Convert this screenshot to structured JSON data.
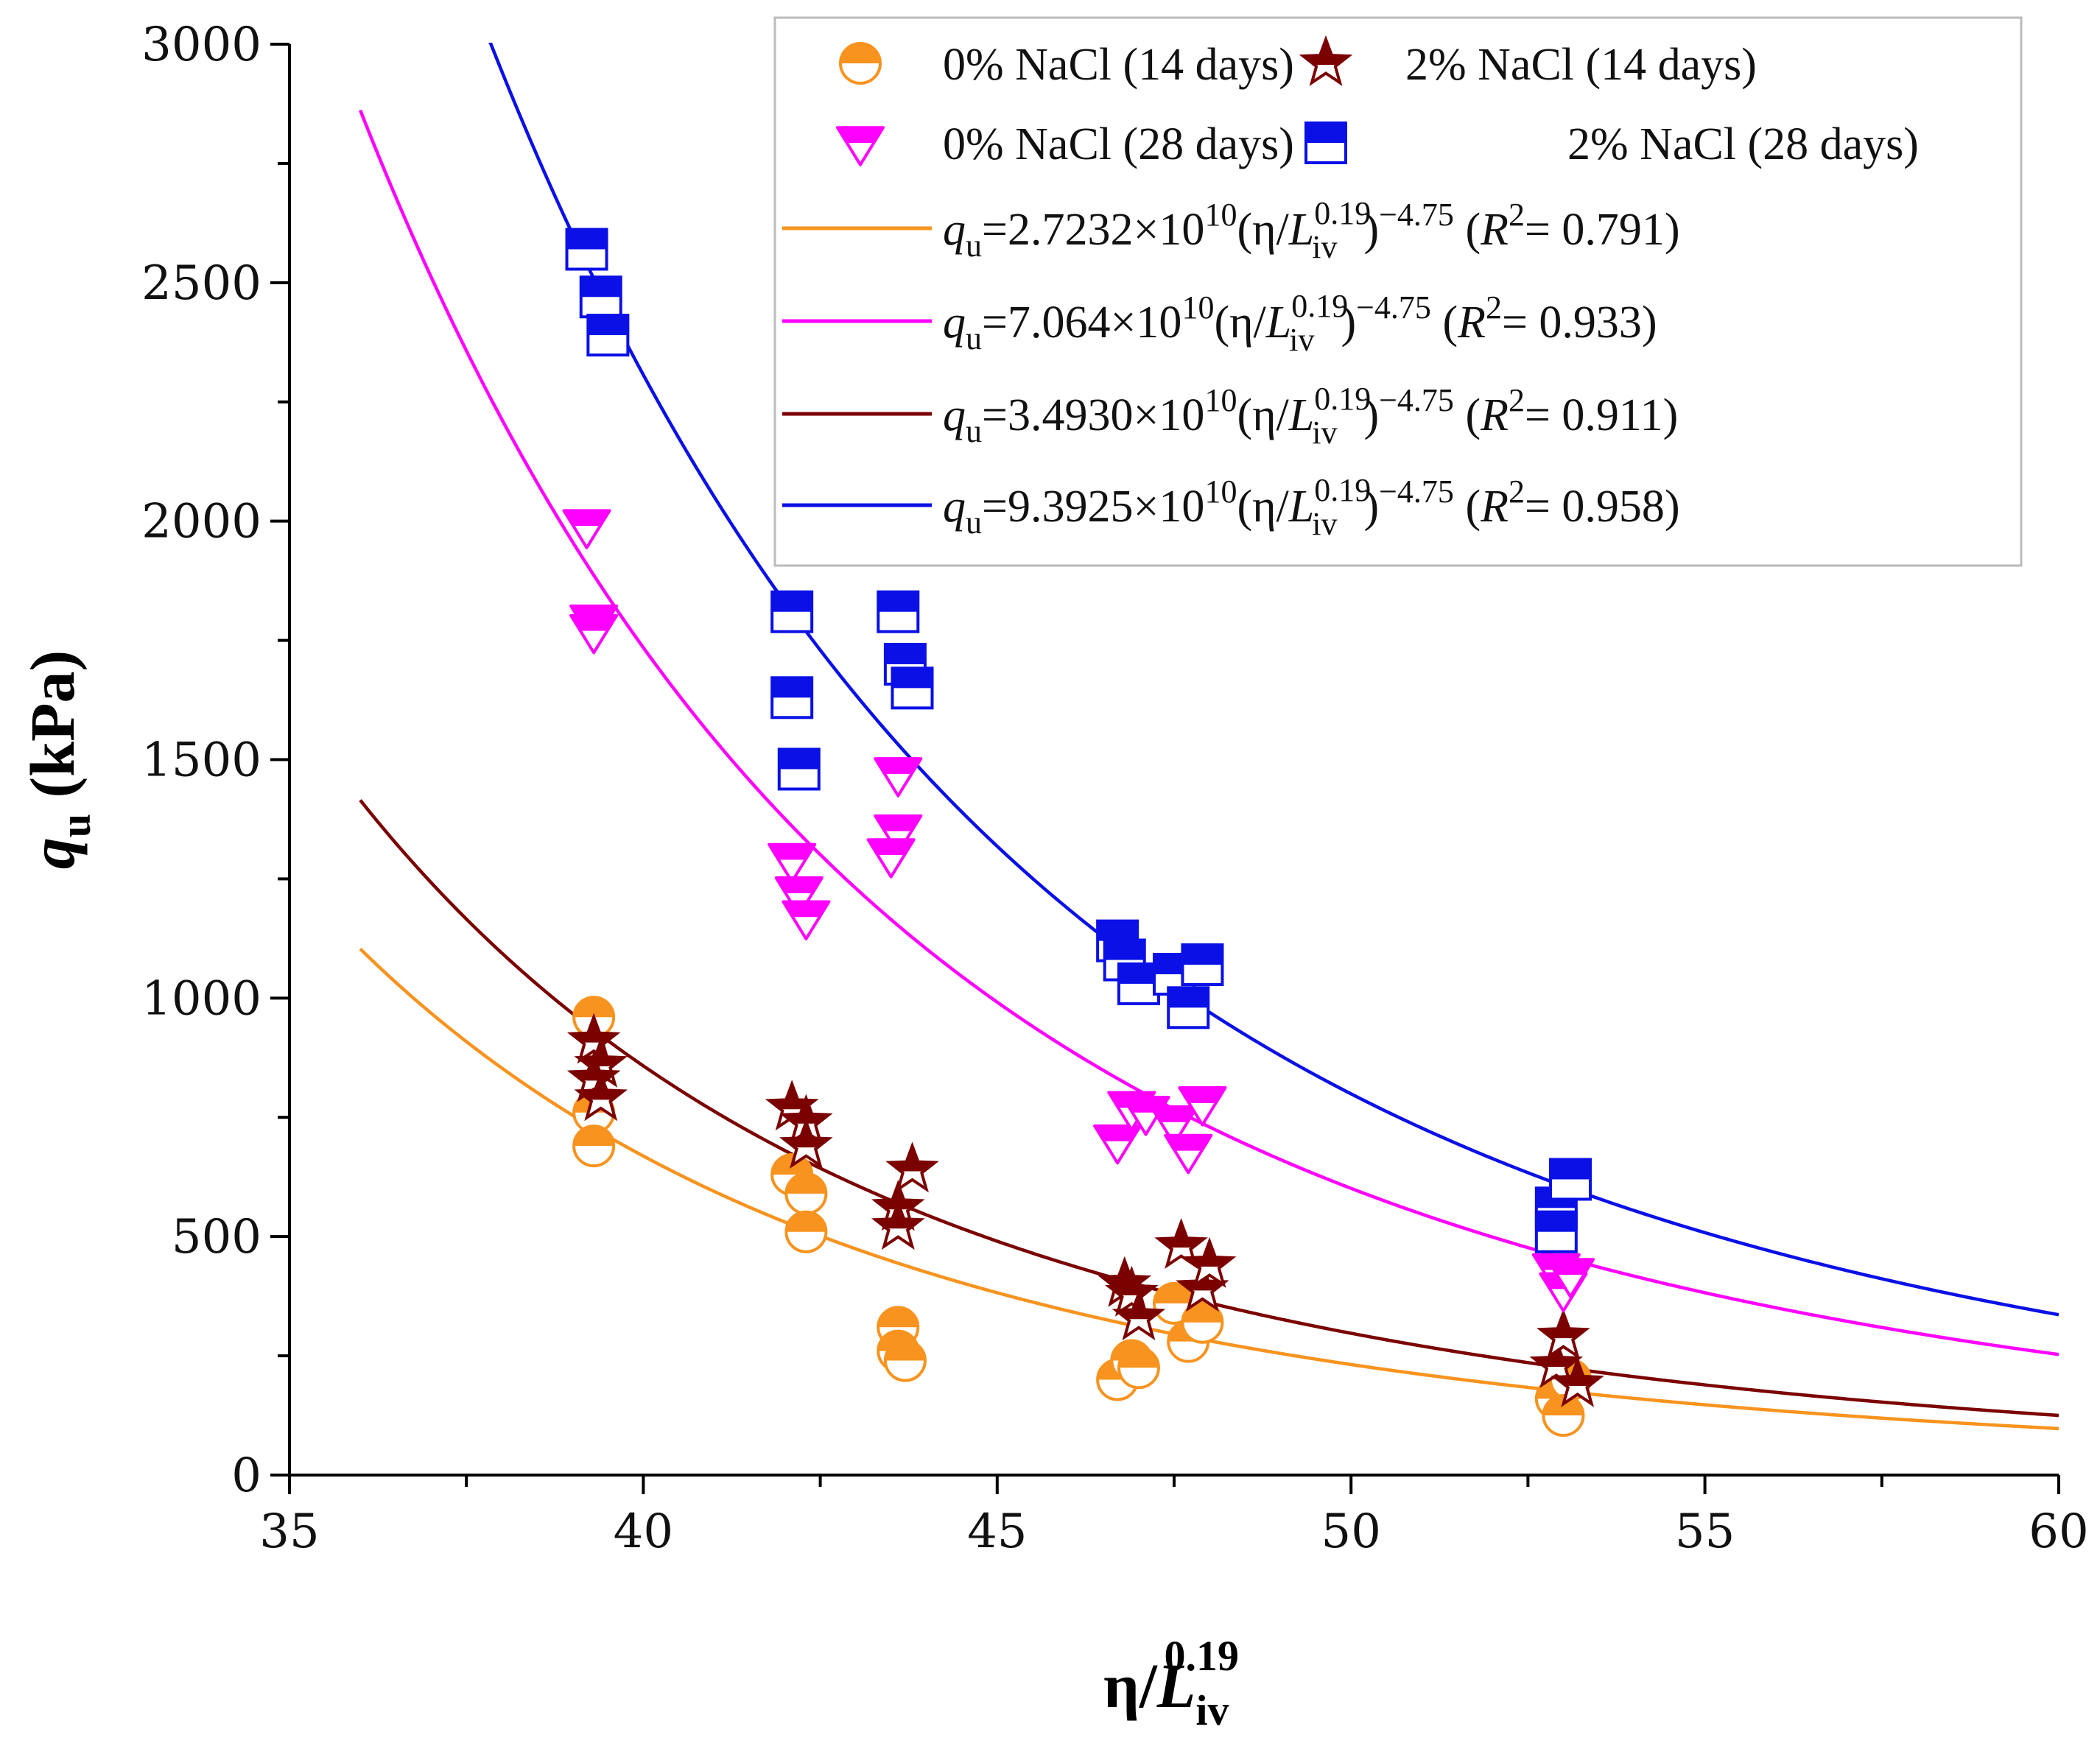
{
  "chart_data": {
    "type": "scatter",
    "xlabel": {
      "main": "η/L",
      "sub": "iv",
      "sup": "0.19"
    },
    "ylabel": {
      "main": "q",
      "sub": "u",
      "rest": " (kPa)"
    },
    "xlim": [
      35,
      60
    ],
    "ylim": [
      0,
      3000
    ],
    "xticks": [
      "35",
      "40",
      "45",
      "50",
      "55",
      "60"
    ],
    "yticks": [
      "0",
      "500",
      "1000",
      "1500",
      "2000",
      "2500",
      "3000"
    ],
    "legend_position": "top-right",
    "colors": {
      "orange": "#f7931e",
      "magenta": "#ff00ff",
      "darkred": "#7b0000",
      "blue": "#0a10e6"
    },
    "series": [
      {
        "name": "0% NaCl (14 days)",
        "marker": "half-circle",
        "color": "#f7931e",
        "points": [
          [
            39.3,
            960
          ],
          [
            39.3,
            760
          ],
          [
            39.3,
            690
          ],
          [
            42.1,
            630
          ],
          [
            42.3,
            590
          ],
          [
            42.3,
            510
          ],
          [
            43.6,
            310
          ],
          [
            43.6,
            260
          ],
          [
            43.7,
            240
          ],
          [
            46.7,
            200
          ],
          [
            46.9,
            240
          ],
          [
            47.0,
            225
          ],
          [
            47.5,
            360
          ],
          [
            47.7,
            280
          ],
          [
            47.9,
            320
          ],
          [
            52.9,
            160
          ],
          [
            53.1,
            200
          ],
          [
            53.0,
            125
          ]
        ]
      },
      {
        "name": "2% NaCl (14 days)",
        "marker": "half-star",
        "color": "#7b0000",
        "points": [
          [
            39.3,
            910
          ],
          [
            39.4,
            860
          ],
          [
            39.3,
            830
          ],
          [
            39.4,
            790
          ],
          [
            42.1,
            770
          ],
          [
            42.3,
            740
          ],
          [
            42.3,
            690
          ],
          [
            43.6,
            560
          ],
          [
            43.6,
            520
          ],
          [
            43.8,
            640
          ],
          [
            46.8,
            400
          ],
          [
            46.9,
            380
          ],
          [
            47.0,
            330
          ],
          [
            47.6,
            480
          ],
          [
            47.9,
            390
          ],
          [
            48.0,
            440
          ],
          [
            52.9,
            230
          ],
          [
            53.0,
            290
          ],
          [
            53.2,
            190
          ]
        ]
      },
      {
        "name": "0% NaCl (28 days)",
        "marker": "half-triangle-down",
        "color": "#ff00ff",
        "points": [
          [
            39.2,
            1990
          ],
          [
            39.3,
            1790
          ],
          [
            39.3,
            1770
          ],
          [
            42.1,
            1290
          ],
          [
            42.2,
            1220
          ],
          [
            42.3,
            1170
          ],
          [
            43.6,
            1470
          ],
          [
            43.6,
            1350
          ],
          [
            43.5,
            1300
          ],
          [
            46.7,
            700
          ],
          [
            46.9,
            770
          ],
          [
            47.1,
            760
          ],
          [
            47.5,
            740
          ],
          [
            47.7,
            680
          ],
          [
            47.9,
            780
          ],
          [
            52.9,
            430
          ],
          [
            53.0,
            390
          ],
          [
            53.1,
            420
          ]
        ]
      },
      {
        "name": "2% NaCl (28 days)",
        "marker": "half-square",
        "color": "#0a10e6",
        "points": [
          [
            39.2,
            2570
          ],
          [
            39.4,
            2470
          ],
          [
            39.5,
            2390
          ],
          [
            42.1,
            1810
          ],
          [
            42.1,
            1630
          ],
          [
            42.2,
            1480
          ],
          [
            43.6,
            1810
          ],
          [
            43.7,
            1700
          ],
          [
            43.8,
            1650
          ],
          [
            46.7,
            1120
          ],
          [
            46.8,
            1080
          ],
          [
            47.0,
            1030
          ],
          [
            47.5,
            1050
          ],
          [
            47.7,
            980
          ],
          [
            47.9,
            1070
          ],
          [
            52.9,
            560
          ],
          [
            52.9,
            510
          ],
          [
            53.1,
            620
          ]
        ]
      }
    ],
    "fits": [
      {
        "coef": 27232000000.0,
        "exponent": -4.75,
        "color": "#f7931e",
        "x_start": 36.0,
        "label": {
          "pre": "=2.7232×10",
          "pow": "10",
          "r2": "= 0.791"
        }
      },
      {
        "coef": 70640000000.0,
        "exponent": -4.75,
        "color": "#ff00ff",
        "x_start": 36.0,
        "label": {
          "pre": "=7.064×10",
          "pow": "10",
          "r2": "= 0.933"
        }
      },
      {
        "coef": 34930000000.0,
        "exponent": -4.75,
        "color": "#7b0000",
        "x_start": 36.0,
        "label": {
          "pre": "=3.4930×10",
          "pow": "10",
          "r2": "= 0.911"
        }
      },
      {
        "coef": 93925000000.0,
        "exponent": -4.75,
        "color": "#0a10e6",
        "x_start": 37.5,
        "label": {
          "pre": "=9.3925×10",
          "pow": "10",
          "r2": "= 0.958"
        }
      }
    ],
    "fit_label_parts": {
      "q": "q",
      "u": "u",
      "open": "(η/",
      "L": "L",
      "iv": "iv",
      "sup": "0.19",
      "close": ")",
      "exp": "−4.75",
      "r2_open": " (",
      "R": "R",
      "two": "2",
      "r2_close": ")"
    }
  }
}
